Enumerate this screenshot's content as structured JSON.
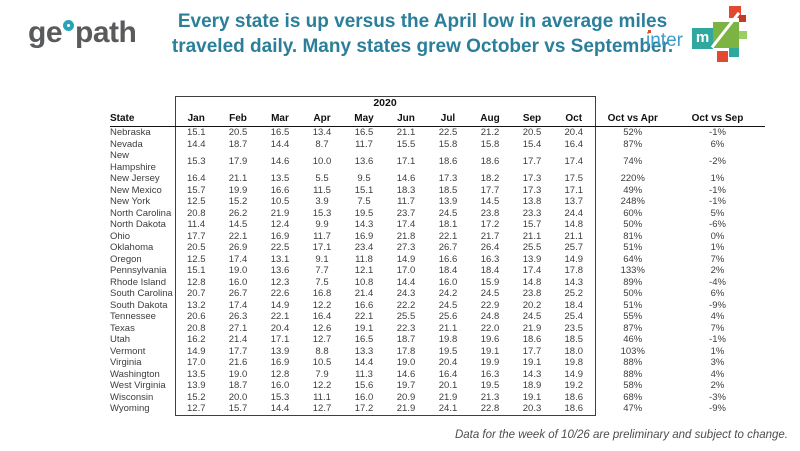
{
  "geopath_logo": {
    "prefix": "ge",
    "suffix": "path"
  },
  "intermx_logo": {
    "text": "inter",
    "m": "m"
  },
  "title": {
    "line1": "Every state is up versus the April low in average miles",
    "line2": "traveled daily. Many states grew October vs September."
  },
  "table": {
    "year_label": "2020",
    "state_header": "State",
    "months": [
      "Jan",
      "Feb",
      "Mar",
      "Apr",
      "May",
      "Jun",
      "Jul",
      "Aug",
      "Sep",
      "Oct"
    ],
    "compare_cols": [
      "Oct vs Apr",
      "Oct vs Sep"
    ]
  },
  "footer": {
    "note": "Data for the week of 10/26 are preliminary and subject to change."
  },
  "colors": {
    "title_teal": "#2b7f9b",
    "logo_gray": "#595a5c",
    "logo_ring_teal": "#2aa3b8",
    "intermx_blue": "#3a9cc9",
    "intermx_teal": "#2fa8a0",
    "intermx_green": "#7cb342",
    "intermx_red": "#e2492f",
    "table_border": "#3f3f3f"
  },
  "chart_data": {
    "type": "table",
    "title": "Every state is up versus the April low in average miles traveled daily. Many states grew October vs September.",
    "year_group_label": "2020",
    "columns": [
      "State",
      "Jan",
      "Feb",
      "Mar",
      "Apr",
      "May",
      "Jun",
      "Jul",
      "Aug",
      "Sep",
      "Oct",
      "Oct vs Apr",
      "Oct vs Sep"
    ],
    "rows": [
      [
        "Nebraska",
        "15.1",
        "20.5",
        "16.5",
        "13.4",
        "16.5",
        "21.1",
        "22.5",
        "21.2",
        "20.5",
        "20.4",
        "52%",
        "-1%"
      ],
      [
        "Nevada",
        "14.4",
        "18.7",
        "14.4",
        "8.7",
        "11.7",
        "15.5",
        "15.8",
        "15.8",
        "15.4",
        "16.4",
        "87%",
        "6%"
      ],
      [
        "New Hampshire",
        "15.3",
        "17.9",
        "14.6",
        "10.0",
        "13.6",
        "17.1",
        "18.6",
        "18.6",
        "17.7",
        "17.4",
        "74%",
        "-2%"
      ],
      [
        "New Jersey",
        "16.4",
        "21.1",
        "13.5",
        "5.5",
        "9.5",
        "14.6",
        "17.3",
        "18.2",
        "17.3",
        "17.5",
        "220%",
        "1%"
      ],
      [
        "New Mexico",
        "15.7",
        "19.9",
        "16.6",
        "11.5",
        "15.1",
        "18.3",
        "18.5",
        "17.7",
        "17.3",
        "17.1",
        "49%",
        "-1%"
      ],
      [
        "New York",
        "12.5",
        "15.2",
        "10.5",
        "3.9",
        "7.5",
        "11.7",
        "13.9",
        "14.5",
        "13.8",
        "13.7",
        "248%",
        "-1%"
      ],
      [
        "North Carolina",
        "20.8",
        "26.2",
        "21.9",
        "15.3",
        "19.5",
        "23.7",
        "24.5",
        "23.8",
        "23.3",
        "24.4",
        "60%",
        "5%"
      ],
      [
        "North Dakota",
        "11.4",
        "14.5",
        "12.4",
        "9.9",
        "14.3",
        "17.4",
        "18.1",
        "17.2",
        "15.7",
        "14.8",
        "50%",
        "-6%"
      ],
      [
        "Ohio",
        "17.7",
        "22.1",
        "16.9",
        "11.7",
        "16.9",
        "21.8",
        "22.1",
        "21.7",
        "21.1",
        "21.1",
        "81%",
        "0%"
      ],
      [
        "Oklahoma",
        "20.5",
        "26.9",
        "22.5",
        "17.1",
        "23.4",
        "27.3",
        "26.7",
        "26.4",
        "25.5",
        "25.7",
        "51%",
        "1%"
      ],
      [
        "Oregon",
        "12.5",
        "17.4",
        "13.1",
        "9.1",
        "11.8",
        "14.9",
        "16.6",
        "16.3",
        "13.9",
        "14.9",
        "64%",
        "7%"
      ],
      [
        "Pennsylvania",
        "15.1",
        "19.0",
        "13.6",
        "7.7",
        "12.1",
        "17.0",
        "18.4",
        "18.4",
        "17.4",
        "17.8",
        "133%",
        "2%"
      ],
      [
        "Rhode Island",
        "12.8",
        "16.0",
        "12.3",
        "7.5",
        "10.8",
        "14.4",
        "16.0",
        "15.9",
        "14.8",
        "14.3",
        "89%",
        "-4%"
      ],
      [
        "South Carolina",
        "20.7",
        "26.7",
        "22.6",
        "16.8",
        "21.4",
        "24.3",
        "24.2",
        "24.5",
        "23.8",
        "25.2",
        "50%",
        "6%"
      ],
      [
        "South Dakota",
        "13.2",
        "17.4",
        "14.9",
        "12.2",
        "16.6",
        "22.2",
        "24.5",
        "22.9",
        "20.2",
        "18.4",
        "51%",
        "-9%"
      ],
      [
        "Tennessee",
        "20.6",
        "26.3",
        "22.1",
        "16.4",
        "22.1",
        "25.5",
        "25.6",
        "24.8",
        "24.5",
        "25.4",
        "55%",
        "4%"
      ],
      [
        "Texas",
        "20.8",
        "27.1",
        "20.4",
        "12.6",
        "19.1",
        "22.3",
        "21.1",
        "22.0",
        "21.9",
        "23.5",
        "87%",
        "7%"
      ],
      [
        "Utah",
        "16.2",
        "21.4",
        "17.1",
        "12.7",
        "16.5",
        "18.7",
        "19.8",
        "19.6",
        "18.6",
        "18.5",
        "46%",
        "-1%"
      ],
      [
        "Vermont",
        "14.9",
        "17.7",
        "13.9",
        "8.8",
        "13.3",
        "17.8",
        "19.5",
        "19.1",
        "17.7",
        "18.0",
        "103%",
        "1%"
      ],
      [
        "Virginia",
        "17.0",
        "21.6",
        "16.9",
        "10.5",
        "14.4",
        "19.0",
        "20.4",
        "19.9",
        "19.1",
        "19.8",
        "88%",
        "3%"
      ],
      [
        "Washington",
        "13.5",
        "19.0",
        "12.8",
        "7.9",
        "11.3",
        "14.6",
        "16.4",
        "16.3",
        "14.3",
        "14.9",
        "88%",
        "4%"
      ],
      [
        "West Virginia",
        "13.9",
        "18.7",
        "16.0",
        "12.2",
        "15.6",
        "19.7",
        "20.1",
        "19.5",
        "18.9",
        "19.2",
        "58%",
        "2%"
      ],
      [
        "Wisconsin",
        "15.2",
        "20.0",
        "15.3",
        "11.1",
        "16.0",
        "20.9",
        "21.9",
        "21.3",
        "19.1",
        "18.6",
        "68%",
        "-3%"
      ],
      [
        "Wyoming",
        "12.7",
        "15.7",
        "14.4",
        "12.7",
        "17.2",
        "21.9",
        "24.1",
        "22.8",
        "20.3",
        "18.6",
        "47%",
        "-9%"
      ]
    ]
  }
}
